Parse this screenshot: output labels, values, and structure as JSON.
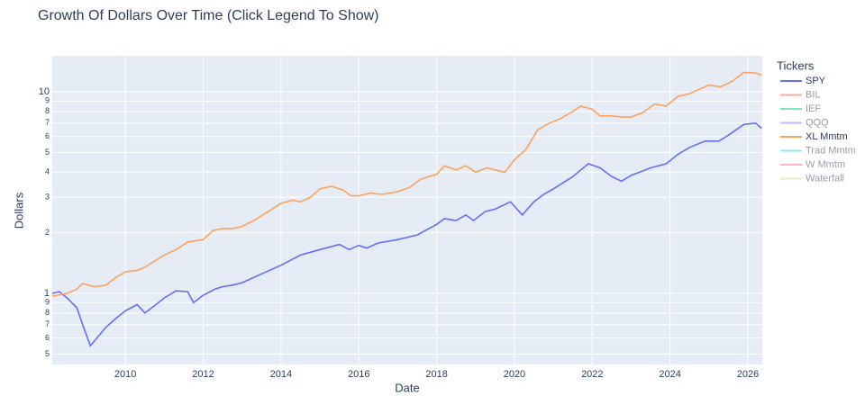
{
  "chart_data": {
    "type": "line",
    "title": "Growth Of Dollars Over Time (Click Legend To Show)",
    "x_label": "Date",
    "y_label": "Dollars",
    "legend_title": "Tickers",
    "legend": "right",
    "grid": true,
    "log_y": true,
    "xlim": [
      2008.12,
      2026.37
    ],
    "xticks": [
      2010,
      2012,
      2014,
      2016,
      2018,
      2020,
      2022,
      2024,
      2026
    ],
    "ylim": [
      0.444,
      15.1
    ],
    "yticks": [
      {
        "value": 0.5,
        "label": "5"
      },
      {
        "value": 0.6,
        "label": "6"
      },
      {
        "value": 0.7,
        "label": "7"
      },
      {
        "value": 0.8,
        "label": "8"
      },
      {
        "value": 0.9,
        "label": "9"
      },
      1,
      2,
      3,
      4,
      5,
      6,
      7,
      8,
      9,
      10
    ],
    "series": [
      {
        "name": "SPY",
        "color": "#636efa",
        "visible": true,
        "x": [
          2008.12,
          2008.3,
          2008.5,
          2008.75,
          2008.9,
          2009.1,
          2009.5,
          2009.75,
          2010.0,
          2010.3,
          2010.5,
          2010.75,
          2011.0,
          2011.3,
          2011.6,
          2011.75,
          2012.0,
          2012.3,
          2012.5,
          2012.75,
          2013.0,
          2013.5,
          2014.0,
          2014.3,
          2014.5,
          2015.0,
          2015.5,
          2015.75,
          2016.0,
          2016.2,
          2016.5,
          2017.0,
          2017.5,
          2018.0,
          2018.2,
          2018.5,
          2018.75,
          2018.95,
          2019.25,
          2019.5,
          2019.9,
          2020.2,
          2020.5,
          2020.75,
          2021.0,
          2021.5,
          2021.9,
          2022.2,
          2022.5,
          2022.75,
          2023.0,
          2023.5,
          2023.9,
          2024.2,
          2024.5,
          2024.9,
          2025.25,
          2025.5,
          2025.9,
          2026.2,
          2026.35
        ],
        "values": [
          1.0,
          1.02,
          0.95,
          0.85,
          0.7,
          0.55,
          0.68,
          0.75,
          0.82,
          0.88,
          0.8,
          0.87,
          0.95,
          1.03,
          1.02,
          0.9,
          0.98,
          1.05,
          1.08,
          1.1,
          1.13,
          1.25,
          1.38,
          1.48,
          1.55,
          1.65,
          1.75,
          1.65,
          1.73,
          1.68,
          1.78,
          1.85,
          1.95,
          2.2,
          2.35,
          2.3,
          2.45,
          2.3,
          2.55,
          2.62,
          2.85,
          2.45,
          2.85,
          3.1,
          3.3,
          3.8,
          4.4,
          4.2,
          3.8,
          3.6,
          3.85,
          4.2,
          4.4,
          4.9,
          5.3,
          5.7,
          5.7,
          6.1,
          6.9,
          7.0,
          6.6
        ]
      },
      {
        "name": "BIL",
        "color": "#EF553B",
        "visible": "legendonly"
      },
      {
        "name": "IEF",
        "color": "#00cc96",
        "visible": "legendonly"
      },
      {
        "name": "QQQ",
        "color": "#ab63fa",
        "visible": "legendonly"
      },
      {
        "name": "XL Mmtm",
        "color": "#FFA15A",
        "visible": true,
        "x": [
          2008.12,
          2008.5,
          2008.75,
          2008.9,
          2009.2,
          2009.5,
          2009.75,
          2010.0,
          2010.3,
          2010.5,
          2010.75,
          2011.0,
          2011.3,
          2011.6,
          2012.0,
          2012.25,
          2012.5,
          2012.75,
          2013.0,
          2013.3,
          2013.6,
          2014.0,
          2014.3,
          2014.5,
          2014.75,
          2015.0,
          2015.3,
          2015.6,
          2015.8,
          2016.0,
          2016.3,
          2016.6,
          2017.0,
          2017.3,
          2017.6,
          2018.0,
          2018.2,
          2018.5,
          2018.75,
          2019.0,
          2019.3,
          2019.5,
          2019.75,
          2020.0,
          2020.3,
          2020.6,
          2020.9,
          2021.2,
          2021.5,
          2021.7,
          2022.0,
          2022.2,
          2022.5,
          2022.75,
          2023.0,
          2023.3,
          2023.6,
          2023.9,
          2024.2,
          2024.5,
          2024.75,
          2025.0,
          2025.3,
          2025.6,
          2025.9,
          2026.2,
          2026.35
        ],
        "values": [
          0.97,
          1.0,
          1.05,
          1.12,
          1.08,
          1.1,
          1.2,
          1.28,
          1.3,
          1.35,
          1.45,
          1.55,
          1.65,
          1.8,
          1.85,
          2.05,
          2.1,
          2.1,
          2.15,
          2.3,
          2.5,
          2.8,
          2.9,
          2.85,
          3.0,
          3.3,
          3.4,
          3.25,
          3.05,
          3.05,
          3.15,
          3.1,
          3.2,
          3.35,
          3.7,
          3.9,
          4.3,
          4.1,
          4.3,
          4.0,
          4.2,
          4.1,
          4.0,
          4.6,
          5.2,
          6.5,
          7.0,
          7.4,
          8.0,
          8.5,
          8.2,
          7.6,
          7.6,
          7.5,
          7.5,
          7.9,
          8.7,
          8.5,
          9.5,
          9.8,
          10.3,
          10.8,
          10.6,
          11.3,
          12.5,
          12.4,
          12.1
        ]
      },
      {
        "name": "Trad Mmtm",
        "color": "#19d3f3",
        "visible": "legendonly"
      },
      {
        "name": "W Mmtm",
        "color": "#FF6692",
        "visible": "legendonly"
      },
      {
        "name": "Waterfall",
        "color": "#B6E880",
        "visible": "legendonly"
      }
    ]
  }
}
